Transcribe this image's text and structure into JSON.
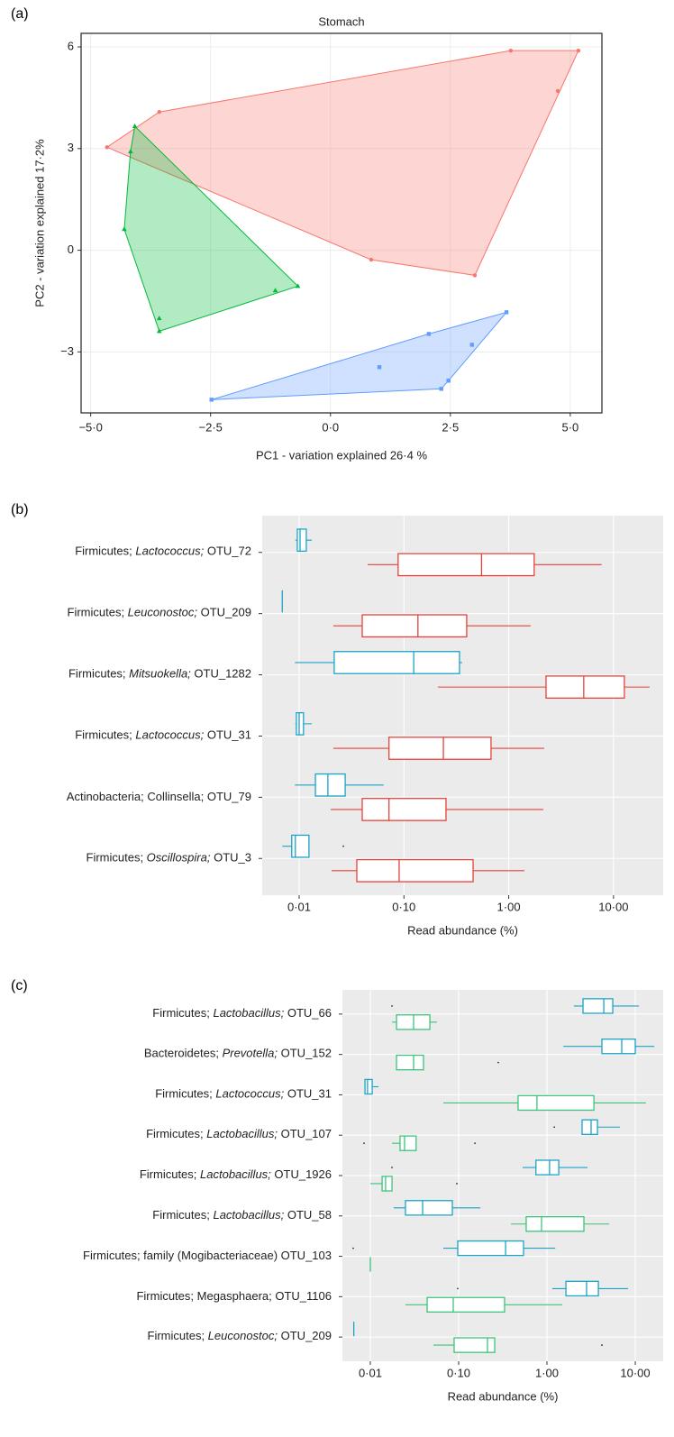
{
  "chart_data": [
    {
      "type": "scatter",
      "panel_label": "(a)",
      "title": "Stomach",
      "xlabel": "PC1 - variation explained 26·4 %",
      "ylabel": "PC2 - variation explained 17·2%",
      "xlim": [
        -5.2,
        5.66
      ],
      "ylim": [
        -4.8,
        6.4
      ],
      "xticks": [
        {
          "value": -5,
          "label": "−5·0"
        },
        {
          "value": -2.5,
          "label": "−2·5"
        },
        {
          "value": 0,
          "label": "0·0"
        },
        {
          "value": 2.5,
          "label": "2·5"
        },
        {
          "value": 5,
          "label": "5·0"
        }
      ],
      "yticks": [
        {
          "value": -3,
          "label": "−3"
        },
        0,
        3,
        6
      ],
      "grid": true,
      "hull": true,
      "series": [
        {
          "color": "#f8766d",
          "marker": "circle",
          "x": [
            -4.66,
            -3.57,
            3.76,
            5.17,
            4.74,
            3.01,
            0.85
          ],
          "y": [
            3.04,
            4.08,
            5.89,
            5.89,
            4.7,
            -0.74,
            -0.28
          ]
        },
        {
          "color": "#00ba38",
          "marker": "triangle",
          "x": [
            -4.08,
            -4.17,
            -4.3,
            -3.57,
            -3.57,
            -1.15,
            -0.68
          ],
          "y": [
            3.66,
            2.91,
            0.62,
            -2.01,
            -2.39,
            -1.19,
            -1.06
          ]
        },
        {
          "color": "#619cff",
          "marker": "square",
          "x": [
            -2.48,
            1.02,
            2.05,
            2.95,
            2.46,
            2.31,
            3.67
          ],
          "y": [
            -4.41,
            -3.45,
            -2.47,
            -2.79,
            -3.85,
            -4.09,
            -1.83
          ]
        }
      ]
    },
    {
      "type": "box",
      "panel_label": "(b)",
      "xlabel": "Read abundance (%)",
      "xlog": true,
      "xlim": [
        0.00444,
        29.8
      ],
      "xticks": [
        {
          "value": 0.01,
          "label": "0·01"
        },
        {
          "value": 0.1,
          "label": "0·10"
        },
        {
          "value": 1,
          "label": "1·00"
        },
        {
          "value": 10,
          "label": "10·00"
        }
      ],
      "categories": [
        "Firmicutes; Lactococcus; OTU_72",
        "Firmicutes; Leuconostoc; OTU_209",
        "Firmicutes; Mitsuokella; OTU_1282",
        "Firmicutes; Lactococcus; OTU_31",
        "Actinobacteria; Collinsella; OTU_79",
        "Firmicutes; Oscillospira; OTU_3"
      ],
      "italic_genus": [
        true,
        true,
        true,
        true,
        false,
        true
      ],
      "series": [
        {
          "color": "#1ba3c6",
          "boxes": [
            {
              "low": 0.0092,
              "q1": 0.0096,
              "median": 0.0102,
              "q3": 0.0117,
              "high": 0.0132,
              "outliers": []
            },
            {
              "low": 0.0069,
              "q1": 0.0069,
              "median": 0.0069,
              "q3": 0.0069,
              "high": 0.0069,
              "outliers": []
            },
            {
              "low": 0.0091,
              "q1": 0.0216,
              "median": 0.124,
              "q3": 0.339,
              "high": 0.36,
              "outliers": []
            },
            {
              "low": 0.0092,
              "q1": 0.0094,
              "median": 0.01,
              "q3": 0.011,
              "high": 0.0132,
              "outliers": []
            },
            {
              "low": 0.0091,
              "q1": 0.0143,
              "median": 0.0188,
              "q3": 0.0275,
              "high": 0.064,
              "outliers": []
            },
            {
              "low": 0.0069,
              "q1": 0.0085,
              "median": 0.0092,
              "q3": 0.0124,
              "high": 0.0124,
              "outliers": [
                0.0264
              ]
            }
          ]
        },
        {
          "color": "#e8413b",
          "boxes": [
            {
              "low": 0.045,
              "q1": 0.088,
              "median": 0.55,
              "q3": 1.75,
              "high": 7.7,
              "outliers": []
            },
            {
              "low": 0.0212,
              "q1": 0.04,
              "median": 0.136,
              "q3": 0.397,
              "high": 1.62,
              "outliers": []
            },
            {
              "low": 0.211,
              "q1": 2.27,
              "median": 5.2,
              "q3": 12.7,
              "high": 22.1,
              "outliers": []
            },
            {
              "low": 0.0212,
              "q1": 0.072,
              "median": 0.238,
              "q3": 0.678,
              "high": 2.18,
              "outliers": []
            },
            {
              "low": 0.02,
              "q1": 0.04,
              "median": 0.072,
              "q3": 0.252,
              "high": 2.14,
              "outliers": []
            },
            {
              "low": 0.0204,
              "q1": 0.0355,
              "median": 0.09,
              "q3": 0.457,
              "high": 1.41,
              "outliers": []
            }
          ]
        }
      ]
    },
    {
      "type": "box",
      "panel_label": "(c)",
      "xlabel": "Read abundance (%)",
      "xlog": true,
      "xlim": [
        0.00483,
        20.7
      ],
      "xticks": [
        {
          "value": 0.01,
          "label": "0·01"
        },
        {
          "value": 0.1,
          "label": "0·10"
        },
        {
          "value": 1,
          "label": "1·00"
        },
        {
          "value": 10,
          "label": "10·00"
        }
      ],
      "categories": [
        "Firmicutes; Lactobacillus; OTU_66",
        "Bacteroidetes; Prevotella; OTU_152",
        "Firmicutes; Lactococcus; OTU_31",
        "Firmicutes; Lactobacillus; OTU_107",
        "Firmicutes; Lactobacillus; OTU_1926",
        "Firmicutes; Lactobacillus; OTU_58",
        "Firmicutes; family (Mogibacteriaceae) OTU_103",
        "Firmicutes; Megasphaera; OTU_1106",
        "Firmicutes; Leuconostoc; OTU_209"
      ],
      "italic_genus": [
        true,
        true,
        true,
        true,
        true,
        true,
        false,
        false,
        true
      ],
      "series": [
        {
          "color": "#1ba3c6",
          "boxes": [
            {
              "low": 2.02,
              "q1": 2.56,
              "median": 4.4,
              "q3": 5.56,
              "high": 11.0,
              "outliers": [
                0.0176
              ]
            },
            {
              "low": 1.53,
              "q1": 4.19,
              "median": 7.03,
              "q3": 10.0,
              "high": 16.4,
              "outliers": []
            },
            {
              "low": 0.0087,
              "q1": 0.0087,
              "median": 0.0093,
              "q3": 0.0105,
              "high": 0.0124,
              "outliers": []
            },
            {
              "low": 2.5,
              "q1": 2.5,
              "median": 3.16,
              "q3": 3.73,
              "high": 6.71,
              "outliers": [
                1.21
              ]
            },
            {
              "low": 0.53,
              "q1": 0.75,
              "median": 1.07,
              "q3": 1.36,
              "high": 2.88,
              "outliers": [
                0.0176
              ]
            },
            {
              "low": 0.0184,
              "q1": 0.025,
              "median": 0.0391,
              "q3": 0.0849,
              "high": 0.176,
              "outliers": []
            },
            {
              "low": 0.0671,
              "q1": 0.0977,
              "median": 0.34,
              "q3": 0.543,
              "high": 1.24,
              "outliers": [
                0.0064
              ]
            },
            {
              "low": 1.15,
              "q1": 1.64,
              "median": 2.81,
              "q3": 3.82,
              "high": 8.28,
              "outliers": [
                0.0977
              ]
            },
            {
              "low": 0.0065,
              "q1": 0.0065,
              "median": 0.0065,
              "q3": 0.0065,
              "high": 0.0065,
              "outliers": []
            }
          ]
        },
        {
          "color": "#3cc47a",
          "boxes": [
            {
              "low": 0.0176,
              "q1": 0.0198,
              "median": 0.0309,
              "q3": 0.0472,
              "high": 0.0569,
              "outliers": []
            },
            {
              "low": 0.0198,
              "q1": 0.0198,
              "median": 0.0309,
              "q3": 0.04,
              "high": 0.04,
              "outliers": [
                0.281
              ]
            },
            {
              "low": 0.0671,
              "q1": 0.471,
              "median": 0.77,
              "q3": 3.4,
              "high": 13.2,
              "outliers": []
            },
            {
              "low": 0.0176,
              "q1": 0.0217,
              "median": 0.0244,
              "q3": 0.033,
              "high": 0.033,
              "outliers": [
                0.0085,
                0.153
              ]
            },
            {
              "low": 0.01,
              "q1": 0.0136,
              "median": 0.0149,
              "q3": 0.0176,
              "high": 0.0176,
              "outliers": [
                0.0955
              ]
            },
            {
              "low": 0.391,
              "q1": 0.582,
              "median": 0.868,
              "q3": 2.62,
              "high": 5.06,
              "outliers": []
            },
            {
              "low": 0.01,
              "q1": 0.01,
              "median": 0.01,
              "q3": 0.01,
              "high": 0.01,
              "outliers": []
            },
            {
              "low": 0.025,
              "q1": 0.044,
              "median": 0.0869,
              "q3": 0.331,
              "high": 1.49,
              "outliers": []
            },
            {
              "low": 0.0518,
              "q1": 0.0889,
              "median": 0.212,
              "q3": 0.256,
              "high": 0.256,
              "outliers": [
                4.19
              ]
            }
          ]
        }
      ]
    }
  ]
}
